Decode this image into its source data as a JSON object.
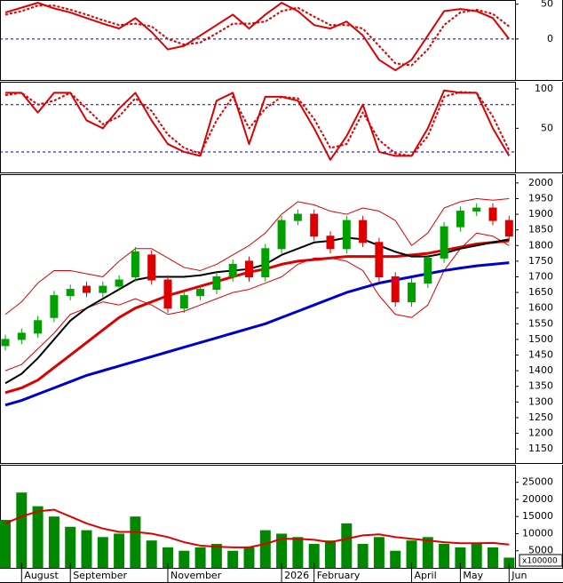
{
  "chart_data": [
    {
      "type": "line",
      "ylim": [
        -59,
        56
      ],
      "yticks": [
        50,
        0
      ],
      "levels": [
        0
      ],
      "series": [
        {
          "color": "#dd0000",
          "dashed": false,
          "values": [
            38,
            45,
            52,
            44,
            38,
            30,
            22,
            15,
            30,
            10,
            -15,
            -10,
            5,
            20,
            35,
            15,
            35,
            52,
            40,
            20,
            15,
            25,
            5,
            -30,
            -45,
            -30,
            5,
            40,
            43,
            40,
            30,
            0
          ]
        },
        {
          "color": "#dd0000",
          "dashed": true,
          "values": [
            35,
            40,
            48,
            48,
            42,
            35,
            27,
            20,
            22,
            18,
            0,
            -8,
            -5,
            8,
            22,
            22,
            25,
            40,
            45,
            32,
            20,
            20,
            15,
            -10,
            -35,
            -38,
            -15,
            20,
            38,
            42,
            36,
            18
          ]
        }
      ]
    },
    {
      "type": "line",
      "ylim": [
        -6,
        109
      ],
      "yticks": [
        100,
        50
      ],
      "levels": [
        80,
        20
      ],
      "series": [
        {
          "color": "#dd0000",
          "dashed": false,
          "values": [
            95,
            95,
            70,
            95,
            95,
            60,
            50,
            75,
            95,
            60,
            30,
            20,
            15,
            85,
            95,
            30,
            90,
            90,
            85,
            50,
            10,
            40,
            80,
            20,
            15,
            15,
            50,
            98,
            95,
            95,
            50,
            15
          ]
        },
        {
          "color": "#dd0000",
          "dashed": true,
          "values": [
            92,
            95,
            80,
            85,
            95,
            75,
            55,
            65,
            88,
            72,
            42,
            25,
            18,
            60,
            90,
            50,
            75,
            90,
            88,
            62,
            25,
            30,
            70,
            35,
            18,
            15,
            40,
            90,
            96,
            95,
            65,
            22
          ]
        }
      ]
    },
    {
      "type": "candlestick",
      "ylim": [
        1105,
        2028
      ],
      "yticks": [
        1150,
        1200,
        1250,
        1300,
        1350,
        1400,
        1450,
        1500,
        1550,
        1600,
        1650,
        1700,
        1750,
        1800,
        1850,
        1900,
        1950,
        2000
      ],
      "up_color": "#00a000",
      "down_color": "#dd0000",
      "open": [
        1480,
        1500,
        1520,
        1570,
        1640,
        1670,
        1650,
        1670,
        1700,
        1770,
        1690,
        1600,
        1640,
        1660,
        1700,
        1750,
        1700,
        1790,
        1880,
        1900,
        1830,
        1790,
        1880,
        1810,
        1700,
        1620,
        1680,
        1760,
        1860,
        1910,
        1920,
        1880
      ],
      "high": [
        1515,
        1535,
        1575,
        1655,
        1675,
        1685,
        1685,
        1705,
        1795,
        1785,
        1705,
        1655,
        1675,
        1715,
        1755,
        1765,
        1805,
        1895,
        1915,
        1915,
        1845,
        1895,
        1895,
        1825,
        1715,
        1695,
        1775,
        1875,
        1925,
        1935,
        1935,
        1895
      ],
      "low": [
        1465,
        1485,
        1505,
        1555,
        1625,
        1635,
        1635,
        1655,
        1685,
        1675,
        1585,
        1585,
        1625,
        1645,
        1685,
        1685,
        1685,
        1775,
        1865,
        1815,
        1775,
        1775,
        1795,
        1685,
        1605,
        1605,
        1665,
        1745,
        1845,
        1895,
        1865,
        1815
      ],
      "close": [
        1500,
        1520,
        1560,
        1640,
        1660,
        1650,
        1670,
        1690,
        1780,
        1690,
        1600,
        1640,
        1660,
        1700,
        1740,
        1700,
        1790,
        1880,
        1900,
        1830,
        1790,
        1880,
        1810,
        1700,
        1620,
        1680,
        1760,
        1860,
        1910,
        1920,
        1880,
        1830
      ],
      "series": [
        {
          "color": "#dd0000",
          "width": 1,
          "values": [
            1580,
            1620,
            1680,
            1720,
            1720,
            1710,
            1700,
            1750,
            1790,
            1790,
            1760,
            1730,
            1720,
            1740,
            1770,
            1800,
            1840,
            1900,
            1940,
            1930,
            1910,
            1900,
            1920,
            1910,
            1880,
            1800,
            1840,
            1920,
            1940,
            1950,
            1945,
            1950
          ]
        },
        {
          "color": "#dd0000",
          "width": 1,
          "values": [
            1400,
            1420,
            1470,
            1520,
            1580,
            1600,
            1620,
            1610,
            1630,
            1610,
            1580,
            1590,
            1610,
            1630,
            1650,
            1660,
            1680,
            1700,
            1740,
            1760,
            1760,
            1750,
            1720,
            1640,
            1580,
            1570,
            1610,
            1720,
            1790,
            1840,
            1830,
            1800
          ]
        },
        {
          "color": "#0000cc",
          "width": 3,
          "values": [
            1290,
            1305,
            1325,
            1345,
            1365,
            1385,
            1400,
            1415,
            1430,
            1445,
            1460,
            1475,
            1490,
            1505,
            1520,
            1535,
            1550,
            1570,
            1590,
            1610,
            1630,
            1650,
            1665,
            1680,
            1690,
            1700,
            1710,
            1720,
            1728,
            1735,
            1740,
            1745
          ]
        },
        {
          "color": "#dd0000",
          "width": 3,
          "values": [
            1330,
            1345,
            1370,
            1410,
            1450,
            1490,
            1530,
            1570,
            1600,
            1620,
            1640,
            1655,
            1670,
            1685,
            1700,
            1715,
            1725,
            1740,
            1750,
            1755,
            1760,
            1765,
            1765,
            1765,
            1765,
            1770,
            1775,
            1785,
            1795,
            1805,
            1810,
            1815
          ]
        },
        {
          "color": "#000000",
          "width": 2,
          "values": [
            1360,
            1390,
            1440,
            1500,
            1560,
            1600,
            1630,
            1660,
            1690,
            1700,
            1700,
            1700,
            1705,
            1715,
            1720,
            1725,
            1740,
            1770,
            1790,
            1810,
            1815,
            1825,
            1820,
            1800,
            1780,
            1765,
            1765,
            1775,
            1790,
            1800,
            1810,
            1820
          ]
        }
      ]
    },
    {
      "type": "bar",
      "ylim": [
        0,
        30100
      ],
      "yticks": [
        5000,
        10000,
        15000,
        20000,
        25000
      ],
      "unit_label": "x100000",
      "categories": [
        null,
        "August",
        null,
        null,
        "September",
        null,
        null,
        null,
        null,
        null,
        "November",
        null,
        null,
        null,
        null,
        null,
        null,
        "2026",
        null,
        "February",
        null,
        null,
        null,
        null,
        null,
        "April",
        null,
        null,
        "May",
        null,
        null,
        "Jun"
      ],
      "color": "#008800",
      "values": [
        14000,
        22000,
        18000,
        15000,
        12000,
        11000,
        9000,
        10000,
        15000,
        8000,
        6000,
        5000,
        6000,
        7000,
        5000,
        6000,
        11000,
        10000,
        9000,
        7000,
        8000,
        13000,
        7000,
        9000,
        5000,
        8000,
        9000,
        7000,
        6000,
        7000,
        6000,
        3000
      ],
      "series": [
        {
          "color": "#dd0000",
          "width": 2,
          "values": [
            13000,
            15000,
            16500,
            17000,
            15000,
            13000,
            11500,
            10500,
            10500,
            10000,
            9000,
            7500,
            6500,
            6200,
            6000,
            6000,
            7000,
            8500,
            8500,
            8200,
            7500,
            8500,
            9500,
            9800,
            9000,
            8500,
            8000,
            7500,
            7200,
            7200,
            7300,
            6800
          ]
        }
      ]
    }
  ]
}
